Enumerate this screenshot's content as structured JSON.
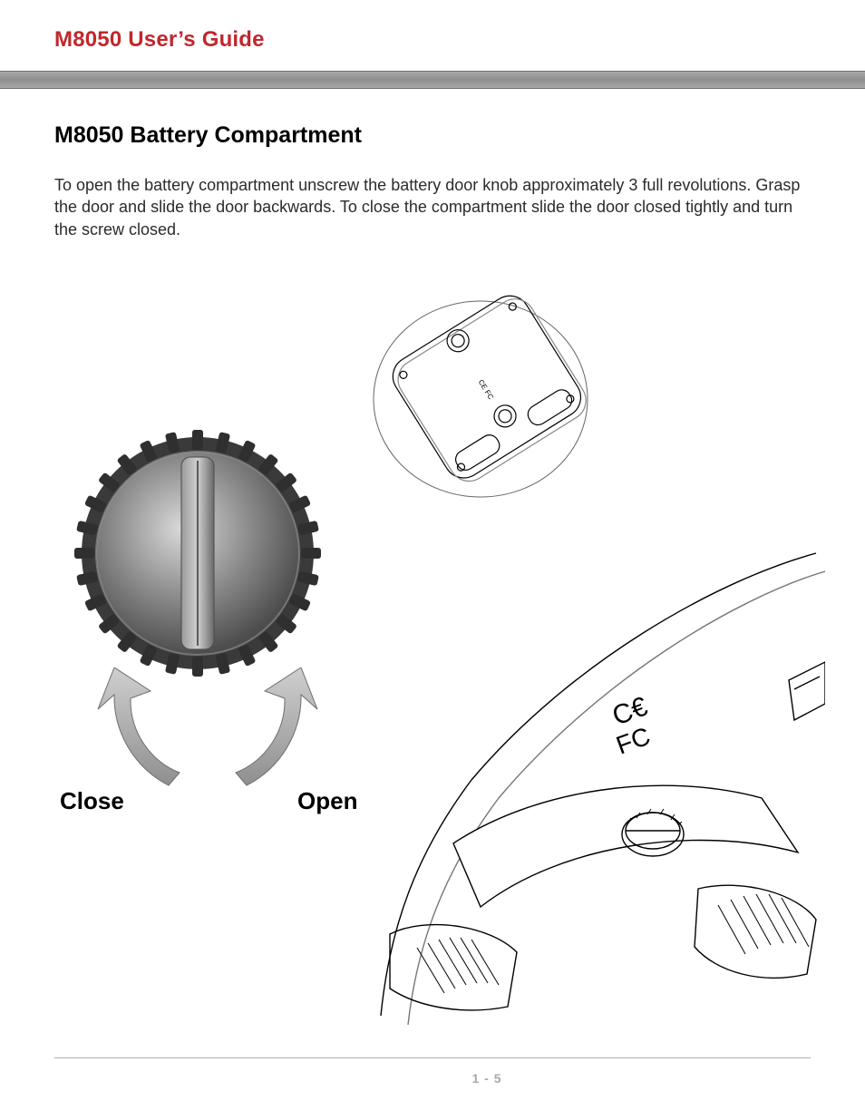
{
  "colors": {
    "title": "#c1272d",
    "heading": "#000000",
    "body": "#2b2b2b",
    "pagenum": "#a7a9ac",
    "rule_grad_top": "#a9a9a9",
    "rule_grad_mid": "#8d8d8d",
    "arrow_fill": "#b3b3b3",
    "arrow_edge": "#6e6e6e",
    "knob_dark": "#5b5b5b",
    "knob_mid": "#767676",
    "knob_light": "#bfbfbf",
    "knob_ridge": "#909090",
    "line": "#000000",
    "line_light": "#7a7a7a"
  },
  "header": {
    "doc_title": "M8050 User’s Guide"
  },
  "section": {
    "heading": "M8050 Battery Compartment",
    "body": "To open the battery compartment unscrew the battery door knob approximately 3 full revolutions. Grasp the door and slide the door backwards. To close the compartment slide the door closed tightly and turn the screw closed."
  },
  "labels": {
    "close": "Close",
    "open": "Open"
  },
  "footer": {
    "page": "1 - 5"
  }
}
